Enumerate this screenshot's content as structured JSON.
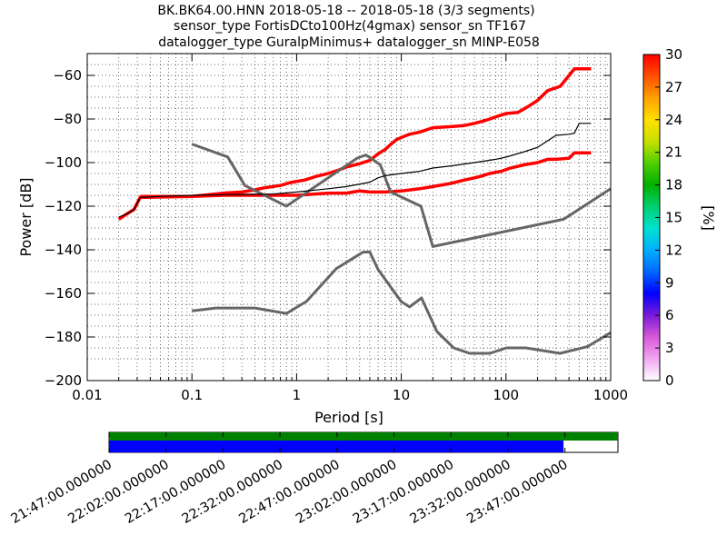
{
  "title": {
    "lines": [
      "BK.BK64.00.HNN   2018-05-18 -- 2018-05-18  (3/3 segments)",
      "sensor_type FortisDCto100Hz(4gmax) sensor_sn TF167",
      "datalogger_type GuralpMinimus+ datalogger_sn MINP-E058"
    ]
  },
  "chart_data": {
    "type": "heatmap",
    "xlabel": "Period [s]",
    "ylabel": "Power [dB]",
    "xscale": "log",
    "xlim": [
      0.01,
      1000
    ],
    "ylim": [
      -200,
      -50
    ],
    "x_ticks": [
      0.01,
      0.1,
      1,
      10,
      100,
      1000
    ],
    "x_tick_labels": [
      "0.01",
      "0.1",
      "1",
      "10",
      "100",
      "1000"
    ],
    "y_ticks": [
      -200,
      -180,
      -160,
      -140,
      -120,
      -100,
      -80,
      -60
    ],
    "y_tick_labels": [
      "−200",
      "−180",
      "−160",
      "−140",
      "−120",
      "−100",
      "−80",
      "−60"
    ],
    "grid": true,
    "colorbar": {
      "label": "[%]",
      "range": [
        0,
        30
      ],
      "ticks": [
        "0",
        "3",
        "6",
        "9",
        "12",
        "15",
        "18",
        "21",
        "24",
        "27",
        "30"
      ],
      "colors": [
        "#ffffff",
        "#f2a6f2",
        "#d85ad8",
        "#7a1ad8",
        "#0000ff",
        "#0066ff",
        "#00b0ff",
        "#00e0d0",
        "#00d070",
        "#00b000",
        "#50d000",
        "#c8e000",
        "#ffe000",
        "#ffa000",
        "#ff5000",
        "#ff0000"
      ]
    },
    "series": [
      {
        "role": "nhnm",
        "color": "#666666",
        "points": [
          [
            0.1,
            -91.5
          ],
          [
            0.22,
            -97.4
          ],
          [
            0.32,
            -110.5
          ],
          [
            0.8,
            -120
          ],
          [
            3.8,
            -97.9
          ],
          [
            4.6,
            -96.5
          ],
          [
            6.3,
            -101
          ],
          [
            7.9,
            -113.5
          ],
          [
            15.4,
            -120
          ],
          [
            20,
            -138.5
          ],
          [
            354.8,
            -126
          ],
          [
            1000,
            -112
          ]
        ]
      },
      {
        "role": "nlnm",
        "color": "#666666",
        "points": [
          [
            0.1,
            -168
          ],
          [
            0.17,
            -166.7
          ],
          [
            0.4,
            -166.7
          ],
          [
            0.8,
            -169.2
          ],
          [
            1.24,
            -163.7
          ],
          [
            2.4,
            -148.6
          ],
          [
            4.3,
            -141.1
          ],
          [
            5,
            -141
          ],
          [
            6,
            -149
          ],
          [
            10,
            -163.8
          ],
          [
            12,
            -166.2
          ],
          [
            15.6,
            -162.1
          ],
          [
            21.9,
            -177.5
          ],
          [
            31.6,
            -185
          ],
          [
            45,
            -187.5
          ],
          [
            70,
            -187.5
          ],
          [
            101,
            -185
          ],
          [
            154,
            -185
          ],
          [
            328,
            -187.5
          ],
          [
            600,
            -184.4
          ],
          [
            1000,
            -178
          ]
        ]
      },
      {
        "role": "median",
        "color": "#000000",
        "points": [
          [
            0.02,
            -125
          ],
          [
            0.024,
            -123.5
          ],
          [
            0.028,
            -121.5
          ],
          [
            0.032,
            -116
          ],
          [
            0.05,
            -115.5
          ],
          [
            0.1,
            -115
          ],
          [
            0.3,
            -114.6
          ],
          [
            0.6,
            -114.4
          ],
          [
            1,
            -113.5
          ],
          [
            2,
            -112
          ],
          [
            3,
            -111
          ],
          [
            5,
            -109
          ],
          [
            6,
            -107
          ],
          [
            7,
            -106
          ],
          [
            10,
            -105
          ],
          [
            15,
            -104
          ],
          [
            20,
            -102.5
          ],
          [
            30,
            -101.5
          ],
          [
            50,
            -100
          ],
          [
            80,
            -98.5
          ],
          [
            100,
            -97.5
          ],
          [
            150,
            -95
          ],
          [
            200,
            -93
          ],
          [
            250,
            -90
          ],
          [
            300,
            -87.5
          ],
          [
            400,
            -87
          ],
          [
            450,
            -86.5
          ],
          [
            500,
            -82
          ],
          [
            650,
            -82
          ]
        ]
      }
    ],
    "distribution": [
      {
        "role": "upper",
        "color": "#ff0000",
        "points": [
          [
            0.02,
            -126
          ],
          [
            0.024,
            -123.5
          ],
          [
            0.028,
            -121.5
          ],
          [
            0.032,
            -116
          ],
          [
            0.1,
            -115.5
          ],
          [
            0.2,
            -114
          ],
          [
            0.3,
            -113.5
          ],
          [
            0.4,
            -112.5
          ],
          [
            0.5,
            -111.5
          ],
          [
            0.7,
            -110.5
          ],
          [
            0.9,
            -109
          ],
          [
            1.2,
            -108
          ],
          [
            1.5,
            -106.5
          ],
          [
            2,
            -105
          ],
          [
            2.5,
            -103.5
          ],
          [
            3,
            -102
          ],
          [
            4,
            -100.5
          ],
          [
            5,
            -99
          ],
          [
            6,
            -96
          ],
          [
            7,
            -94
          ],
          [
            8,
            -91.5
          ],
          [
            9,
            -89.5
          ],
          [
            10,
            -88.5
          ],
          [
            12,
            -87
          ],
          [
            15,
            -86
          ],
          [
            20,
            -84
          ],
          [
            30,
            -83.5
          ],
          [
            40,
            -83
          ],
          [
            50,
            -82
          ],
          [
            60,
            -81
          ],
          [
            70,
            -80
          ],
          [
            80,
            -79
          ],
          [
            100,
            -77.5
          ],
          [
            130,
            -77
          ],
          [
            160,
            -74.5
          ],
          [
            200,
            -71.5
          ],
          [
            250,
            -67
          ],
          [
            330,
            -65
          ],
          [
            450,
            -57
          ],
          [
            650,
            -57
          ]
        ]
      },
      {
        "role": "lower",
        "color": "#ff0000",
        "points": [
          [
            0.032,
            -115.5
          ],
          [
            0.1,
            -115.5
          ],
          [
            0.2,
            -115
          ],
          [
            0.5,
            -115
          ],
          [
            1,
            -115
          ],
          [
            2,
            -114
          ],
          [
            3,
            -114
          ],
          [
            4,
            -113
          ],
          [
            5,
            -113.5
          ],
          [
            7,
            -113.5
          ],
          [
            10,
            -113
          ],
          [
            15,
            -112
          ],
          [
            20,
            -111
          ],
          [
            30,
            -109.5
          ],
          [
            40,
            -108
          ],
          [
            50,
            -107
          ],
          [
            60,
            -106
          ],
          [
            70,
            -105
          ],
          [
            90,
            -104
          ],
          [
            110,
            -102.5
          ],
          [
            150,
            -101
          ],
          [
            200,
            -100
          ],
          [
            250,
            -98.5
          ],
          [
            300,
            -98.5
          ],
          [
            400,
            -98
          ],
          [
            450,
            -95.5
          ],
          [
            650,
            -95.5
          ]
        ]
      }
    ],
    "timeline": {
      "time_labels": [
        "21:47:00.000000",
        "22:02:00.000000",
        "22:17:00.000000",
        "22:32:00.000000",
        "22:47:00.000000",
        "23:02:00.000000",
        "23:17:00.000000",
        "23:32:00.000000",
        "23:47:00.000000"
      ],
      "data_color": "#008000",
      "psd_color": "#0000ff",
      "data_coverage": 1.0,
      "psd_coverage": 0.893
    }
  }
}
